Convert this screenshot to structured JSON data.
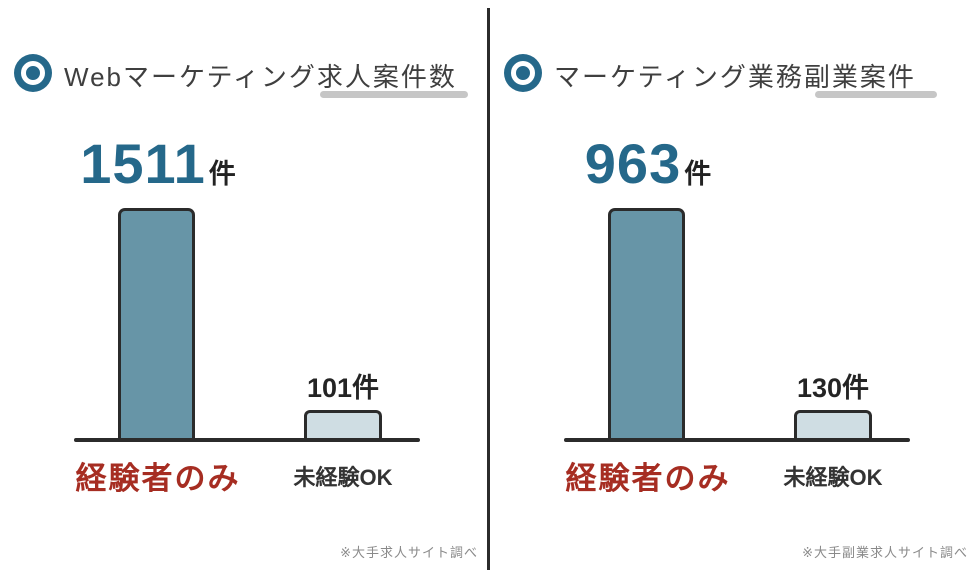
{
  "colors": {
    "accent_teal": "#25688a",
    "bar_fill_dark": "#6795a7",
    "bar_fill_light": "#cfdde3",
    "outline_dark": "#2b2b2b",
    "label_red": "#a62d22",
    "underline_gray": "#c6c6c6",
    "title_gray": "#3f3f3f",
    "footnote_gray": "#8a8a8a"
  },
  "panels": [
    {
      "icon": "target-icon",
      "title": "Webマーケティング求人案件数",
      "highlight_value": "1511",
      "highlight_unit": "件",
      "bars": [
        {
          "label": "経験者のみ",
          "value": 1511,
          "value_label": "1511件"
        },
        {
          "label": "未経験OK",
          "value": 101,
          "value_label": "101件"
        }
      ],
      "footnote": "※大手求人サイト調べ"
    },
    {
      "icon": "target-icon",
      "title": "マーケティング業務副業案件",
      "highlight_value": "963",
      "highlight_unit": "件",
      "bars": [
        {
          "label": "経験者のみ",
          "value": 963,
          "value_label": "963件"
        },
        {
          "label": "未経験OK",
          "value": 130,
          "value_label": "130件"
        }
      ],
      "footnote": "※大手副業求人サイト調べ"
    }
  ],
  "chart_data": [
    {
      "type": "bar",
      "title": "Webマーケティング求人案件数",
      "categories": [
        "経験者のみ",
        "未経験OK"
      ],
      "values": [
        1511,
        101
      ],
      "unit": "件",
      "data_labels": [
        "1511件",
        "101件"
      ],
      "xlabel": "",
      "ylabel": "",
      "grid": false,
      "legend": false,
      "annotations": [
        "※大手求人サイト調べ"
      ],
      "bar_colors": [
        "#6795a7",
        "#cfdde3"
      ],
      "category_label_colors": [
        "#a62d22",
        "#333333"
      ]
    },
    {
      "type": "bar",
      "title": "マーケティング業務副業案件",
      "categories": [
        "経験者のみ",
        "未経験OK"
      ],
      "values": [
        963,
        130
      ],
      "unit": "件",
      "data_labels": [
        "963件",
        "130件"
      ],
      "xlabel": "",
      "ylabel": "",
      "grid": false,
      "legend": false,
      "annotations": [
        "※大手副業求人サイト調べ"
      ],
      "bar_colors": [
        "#6795a7",
        "#cfdde3"
      ],
      "category_label_colors": [
        "#a62d22",
        "#333333"
      ]
    }
  ]
}
